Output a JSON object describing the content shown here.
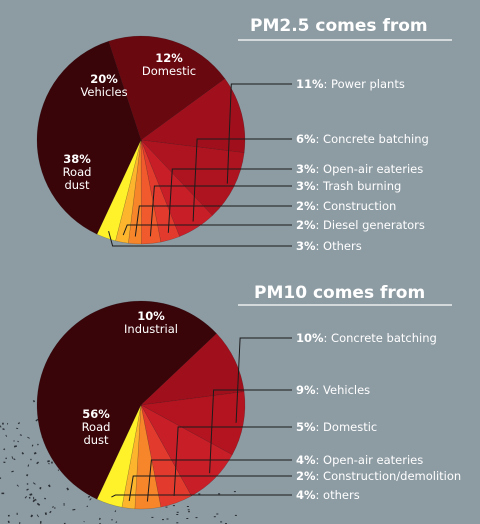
{
  "colors": {
    "background": "#8d9ba3",
    "text": "#ffffff",
    "leader": "#1b1b1b"
  },
  "chart_data": [
    {
      "type": "pie",
      "title": "PM2.5 comes from",
      "slices": [
        {
          "label": "Road dust",
          "value": 38,
          "color": "#3a0509",
          "inside": true
        },
        {
          "label": "Vehicles",
          "value": 20,
          "color": "#6a0810",
          "inside": true
        },
        {
          "label": "Domestic",
          "value": 12,
          "color": "#a0101c",
          "inside": true
        },
        {
          "label": "Power plants",
          "value": 11,
          "color": "#ae1420",
          "inside": false
        },
        {
          "label": "Concrete batching",
          "value": 6,
          "color": "#c81e28",
          "inside": false
        },
        {
          "label": "Open-air eateries",
          "value": 3,
          "color": "#e33a2e",
          "inside": false
        },
        {
          "label": "Trash burning",
          "value": 3,
          "color": "#f05a2c",
          "inside": false
        },
        {
          "label": "Construction",
          "value": 2,
          "color": "#f7862a",
          "inside": false
        },
        {
          "label": "Diesel generators",
          "value": 2,
          "color": "#fcb52c",
          "inside": false
        },
        {
          "label": "Others",
          "value": 3,
          "color": "#fff22a",
          "inside": false
        }
      ]
    },
    {
      "type": "pie",
      "title": "PM10 comes from",
      "slices": [
        {
          "label": "Road dust",
          "value": 56,
          "color": "#3a0509",
          "inside": true
        },
        {
          "label": "Industrial",
          "value": 10,
          "color": "#a0101c",
          "inside": true
        },
        {
          "label": "Concrete batching",
          "value": 10,
          "color": "#b3141f",
          "inside": false
        },
        {
          "label": "Vehicles",
          "value": 9,
          "color": "#c81e28",
          "inside": false
        },
        {
          "label": "Domestic",
          "value": 5,
          "color": "#e33a2e",
          "inside": false
        },
        {
          "label": "Open-air eateries",
          "value": 4,
          "color": "#f7862a",
          "inside": false
        },
        {
          "label": "Construction/demolition",
          "value": 2,
          "color": "#fcb52c",
          "inside": false
        },
        {
          "label": "others",
          "value": 4,
          "color": "#fff22a",
          "inside": false
        }
      ]
    }
  ]
}
